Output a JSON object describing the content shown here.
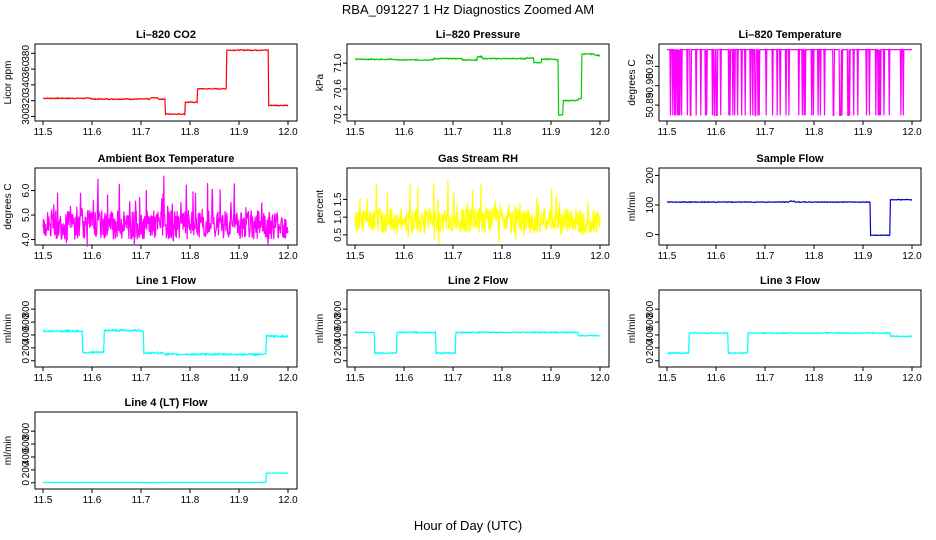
{
  "page": {
    "title": "RBA_091227  1 Hz Diagnostics Zoomed AM",
    "x_caption": "Hour of Day (UTC)"
  },
  "chart_data": [
    {
      "id": "co2",
      "type": "line",
      "title": "Li–820 CO2",
      "ylabel": "Licor ppm",
      "color": "#ff0000",
      "xlim": [
        11.5,
        12.0
      ],
      "ylim": [
        298,
        388
      ],
      "yticks": [
        "300",
        "320",
        "340",
        "360",
        "380"
      ],
      "ytick_values": [
        300,
        320,
        340,
        360,
        380
      ],
      "xticks": [
        "11.5",
        "11.6",
        "11.7",
        "11.8",
        "11.9",
        "12.0"
      ],
      "series": [
        {
          "name": "CO2",
          "pattern": "steps",
          "noise": 0.6,
          "segments": [
            [
              11.5,
              323
            ],
            [
              11.6,
              322
            ],
            [
              11.72,
              323.5
            ],
            [
              11.735,
              322
            ],
            [
              11.75,
              303
            ],
            [
              11.79,
              318
            ],
            [
              11.815,
              335
            ],
            [
              11.875,
              384
            ],
            [
              11.96,
              314
            ],
            [
              12.0,
              314
            ]
          ]
        }
      ]
    },
    {
      "id": "pressure",
      "type": "line",
      "title": "Li–820 Pressure",
      "ylabel": "kPa",
      "color": "#00cc00",
      "xlim": [
        11.5,
        12.0
      ],
      "ylim": [
        70.15,
        71.25
      ],
      "yticks": [
        "70.2",
        "70.6",
        "71.0"
      ],
      "ytick_values": [
        70.2,
        70.6,
        71.0
      ],
      "xticks": [
        "11.5",
        "11.6",
        "11.7",
        "11.8",
        "11.9",
        "12.0"
      ],
      "series": [
        {
          "name": "Pressure",
          "pattern": "steps",
          "noise": 0.008,
          "segments": [
            [
              11.5,
              71.06
            ],
            [
              11.58,
              71.05
            ],
            [
              11.66,
              71.07
            ],
            [
              11.72,
              71.05
            ],
            [
              11.75,
              71.1
            ],
            [
              11.76,
              71.07
            ],
            [
              11.85,
              71.08
            ],
            [
              11.865,
              71.01
            ],
            [
              11.88,
              71.06
            ],
            [
              11.91,
              71.05
            ],
            [
              11.915,
              70.2
            ],
            [
              11.925,
              70.42
            ],
            [
              11.955,
              70.45
            ],
            [
              11.962,
              71.14
            ],
            [
              11.99,
              71.12
            ],
            [
              12.0,
              71.12
            ]
          ]
        }
      ]
    },
    {
      "id": "temperature",
      "type": "line",
      "title": "Li–820 Temperature",
      "ylabel": "degrees C",
      "color": "#ff00ff",
      "xlim": [
        11.5,
        12.0
      ],
      "ylim": [
        50.88,
        50.935
      ],
      "yticks": [
        "50.89",
        "50.90",
        "50.92"
      ],
      "ytick_values": [
        50.89,
        50.905,
        50.92
      ],
      "xticks": [
        "11.5",
        "11.6",
        "11.7",
        "11.8",
        "11.9",
        "12.0"
      ],
      "series": [
        {
          "name": "Temperature",
          "pattern": "quantized",
          "levels": [
            50.882,
            50.933
          ],
          "high_fraction": 0.82
        }
      ]
    },
    {
      "id": "ambient",
      "type": "line",
      "title": "Ambient Box Temperature",
      "ylabel": "degrees C",
      "color": "#ff00ff",
      "xlim": [
        11.5,
        12.0
      ],
      "ylim": [
        3.9,
        6.8
      ],
      "yticks": [
        "4.0",
        "5.0",
        "6.0"
      ],
      "ytick_values": [
        4.0,
        5.0,
        6.0
      ],
      "xticks": [
        "11.5",
        "11.6",
        "11.7",
        "11.8",
        "11.9",
        "12.0"
      ],
      "series": [
        {
          "name": "Ambient",
          "pattern": "noisy",
          "mean": 4.6,
          "spread": 0.6,
          "spike": 1.9
        }
      ]
    },
    {
      "id": "rh",
      "type": "line",
      "title": "Gas Stream RH",
      "ylabel": "percent",
      "color": "#ffff00",
      "xlim": [
        11.5,
        12.0
      ],
      "ylim": [
        0.3,
        2.3
      ],
      "yticks": [
        "0.5",
        "1.0",
        "1.5"
      ],
      "ytick_values": [
        0.5,
        1.0,
        1.5
      ],
      "xticks": [
        "11.5",
        "11.6",
        "11.7",
        "11.8",
        "11.9",
        "12.0"
      ],
      "series": [
        {
          "name": "RH",
          "pattern": "noisy",
          "mean": 0.9,
          "spread": 0.35,
          "spike": 1.2
        }
      ]
    },
    {
      "id": "sample",
      "type": "line",
      "title": "Sample Flow",
      "ylabel": "ml/min",
      "color": "#0000cc",
      "xlim": [
        11.5,
        12.0
      ],
      "ylim": [
        -25,
        215
      ],
      "yticks": [
        "0",
        "100",
        "200"
      ],
      "ytick_values": [
        0,
        100,
        200
      ],
      "xticks": [
        "11.5",
        "11.6",
        "11.7",
        "11.8",
        "11.9",
        "12.0"
      ],
      "series": [
        {
          "name": "Sample",
          "pattern": "steps",
          "noise": 1.2,
          "segments": [
            [
              11.5,
              110
            ],
            [
              11.75,
              113
            ],
            [
              11.76,
              110
            ],
            [
              11.915,
              -2
            ],
            [
              11.955,
              118
            ],
            [
              12.0,
              118
            ]
          ]
        }
      ]
    },
    {
      "id": "line1",
      "type": "line",
      "title": "Line 1 Flow",
      "ylabel": "ml/min",
      "color": "#00ffff",
      "xlim": [
        11.5,
        12.0
      ],
      "ylim": [
        -50,
        1050
      ],
      "yticks": [
        "0",
        "200",
        "400",
        "600",
        "800"
      ],
      "ytick_values": [
        0,
        200,
        400,
        600,
        800
      ],
      "xticks": [
        "11.5",
        "11.6",
        "11.7",
        "11.8",
        "11.9",
        "12.0"
      ],
      "series": [
        {
          "name": "Line 1",
          "pattern": "steps",
          "noise": 14,
          "segments": [
            [
              11.5,
              460
            ],
            [
              11.58,
              130
            ],
            [
              11.625,
              470
            ],
            [
              11.705,
              120
            ],
            [
              11.75,
              100
            ],
            [
              11.955,
              380
            ],
            [
              12.0,
              380
            ]
          ]
        }
      ]
    },
    {
      "id": "line2",
      "type": "line",
      "title": "Line 2 Flow",
      "ylabel": "ml/min",
      "color": "#00ffff",
      "xlim": [
        11.5,
        12.0
      ],
      "ylim": [
        -50,
        1050
      ],
      "yticks": [
        "0",
        "200",
        "400",
        "600",
        "800"
      ],
      "ytick_values": [
        0,
        200,
        400,
        600,
        800
      ],
      "xticks": [
        "11.5",
        "11.6",
        "11.7",
        "11.8",
        "11.9",
        "12.0"
      ],
      "series": [
        {
          "name": "Line 2",
          "pattern": "steps",
          "noise": 8,
          "segments": [
            [
              11.5,
              440
            ],
            [
              11.54,
              120
            ],
            [
              11.585,
              440
            ],
            [
              11.665,
              120
            ],
            [
              11.705,
              440
            ],
            [
              11.955,
              390
            ],
            [
              12.0,
              390
            ]
          ]
        }
      ]
    },
    {
      "id": "line3",
      "type": "line",
      "title": "Line 3 Flow",
      "ylabel": "ml/min",
      "color": "#00ffff",
      "xlim": [
        11.5,
        12.0
      ],
      "ylim": [
        -50,
        1050
      ],
      "yticks": [
        "0",
        "200",
        "400",
        "600",
        "800"
      ],
      "ytick_values": [
        0,
        200,
        400,
        600,
        800
      ],
      "xticks": [
        "11.5",
        "11.6",
        "11.7",
        "11.8",
        "11.9",
        "12.0"
      ],
      "series": [
        {
          "name": "Line 3",
          "pattern": "steps",
          "noise": 8,
          "segments": [
            [
              11.5,
              120
            ],
            [
              11.545,
              430
            ],
            [
              11.625,
              120
            ],
            [
              11.665,
              430
            ],
            [
              11.955,
              380
            ],
            [
              12.0,
              380
            ]
          ]
        }
      ]
    },
    {
      "id": "line4",
      "type": "line",
      "title": "Line 4 (LT) Flow",
      "ylabel": "ml/min",
      "color": "#00ffff",
      "xlim": [
        11.5,
        12.0
      ],
      "ylim": [
        -50,
        1050
      ],
      "yticks": [
        "0",
        "200",
        "400",
        "600",
        "800"
      ],
      "ytick_values": [
        0,
        200,
        400,
        600,
        800
      ],
      "xticks": [
        "11.5",
        "11.6",
        "11.7",
        "11.8",
        "11.9",
        "12.0"
      ],
      "series": [
        {
          "name": "Line 4",
          "pattern": "steps",
          "noise": 2,
          "segments": [
            [
              11.5,
              5
            ],
            [
              11.955,
              150
            ],
            [
              12.0,
              150
            ]
          ]
        }
      ]
    }
  ]
}
